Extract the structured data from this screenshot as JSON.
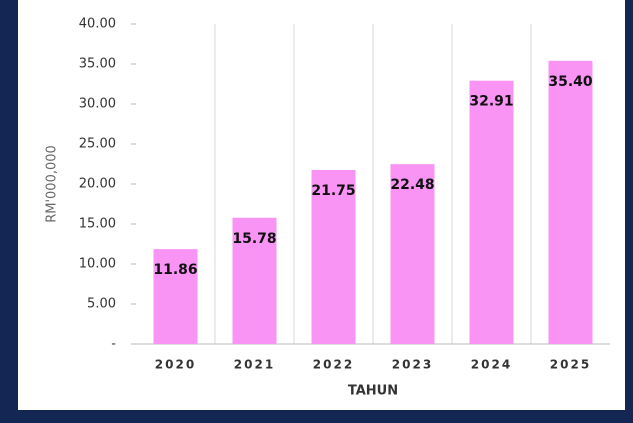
{
  "chart_data": {
    "type": "bar",
    "categories": [
      "2020",
      "2021",
      "2022",
      "2023",
      "2024",
      "2025"
    ],
    "values": [
      11.86,
      15.78,
      21.75,
      22.48,
      32.91,
      35.4
    ],
    "value_labels": [
      "11.86",
      "15.78",
      "21.75",
      "22.48",
      "32.91",
      "35.40"
    ],
    "color": "#f994f5",
    "ylabel": "RM'000,000",
    "xlabel": "TAHUN",
    "ylim": [
      0,
      40
    ],
    "yticks": [
      {
        "value": 0,
        "label": "-"
      },
      {
        "value": 5,
        "label": "5.00"
      },
      {
        "value": 10,
        "label": "10.00"
      },
      {
        "value": 15,
        "label": "15.00"
      },
      {
        "value": 20,
        "label": "20.00"
      },
      {
        "value": 25,
        "label": "25.00"
      },
      {
        "value": 30,
        "label": "30.00"
      },
      {
        "value": 35,
        "label": "35.00"
      },
      {
        "value": 40,
        "label": "40.00"
      }
    ],
    "grid": true
  }
}
